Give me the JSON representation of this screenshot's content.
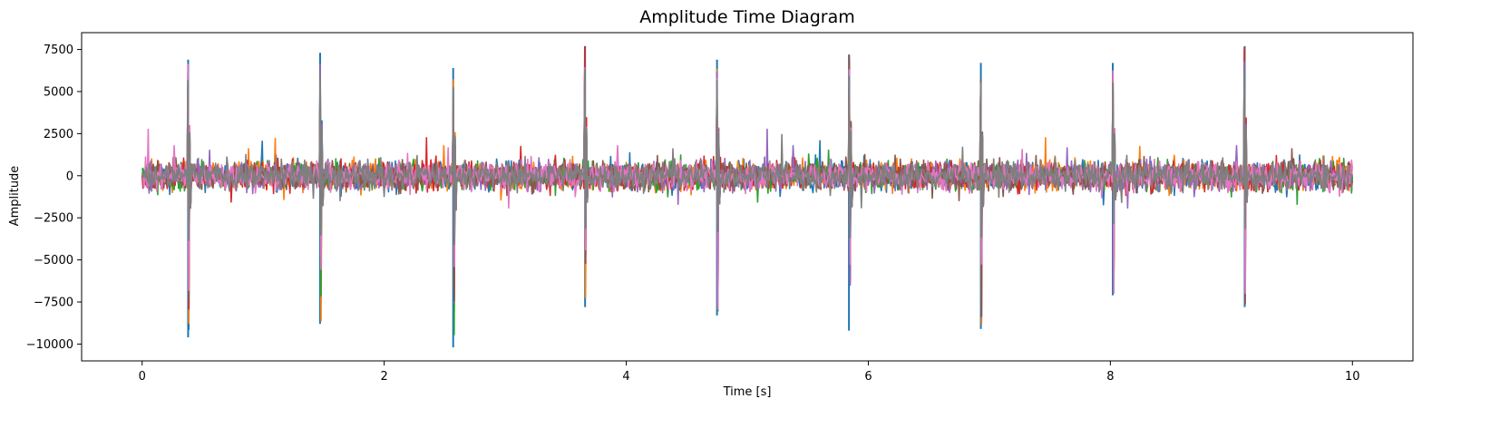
{
  "chart_data": {
    "type": "line",
    "title": "Amplitude Time Diagram",
    "xlabel": "Time [s]",
    "ylabel": "Amplitude",
    "xlim": [
      -0.5,
      10.5
    ],
    "ylim": [
      -11000,
      8500
    ],
    "xticks": [
      0,
      2,
      4,
      6,
      8,
      10
    ],
    "xtick_labels": [
      "0",
      "2",
      "4",
      "6",
      "8",
      "10"
    ],
    "yticks": [
      -10000,
      -7500,
      -5000,
      -2500,
      0,
      2500,
      5000,
      7500
    ],
    "ytick_labels": [
      "−10000",
      "−7500",
      "−5000",
      "−2500",
      "0",
      "2500",
      "5000",
      "7500"
    ],
    "grid": false,
    "legend": false,
    "duration_s": 10,
    "noise_band": [
      -1000,
      1000
    ],
    "series_colors": [
      "#1f77b4",
      "#ff7f0e",
      "#2ca02c",
      "#d62728",
      "#9467bd",
      "#8c564b",
      "#e377c2",
      "#7f7f7f"
    ],
    "spikes": [
      {
        "t": 0.38,
        "max": 6900,
        "min": -9600
      },
      {
        "t": 1.47,
        "max": 7300,
        "min": -8800
      },
      {
        "t": 2.57,
        "max": 6400,
        "min": -10200
      },
      {
        "t": 3.66,
        "max": 7700,
        "min": -7800
      },
      {
        "t": 4.75,
        "max": 6900,
        "min": -8300
      },
      {
        "t": 5.84,
        "max": 7200,
        "min": -9200
      },
      {
        "t": 6.93,
        "max": 6700,
        "min": -9100
      },
      {
        "t": 8.02,
        "max": 6700,
        "min": -7100
      },
      {
        "t": 9.11,
        "max": 7700,
        "min": -7800
      }
    ]
  }
}
